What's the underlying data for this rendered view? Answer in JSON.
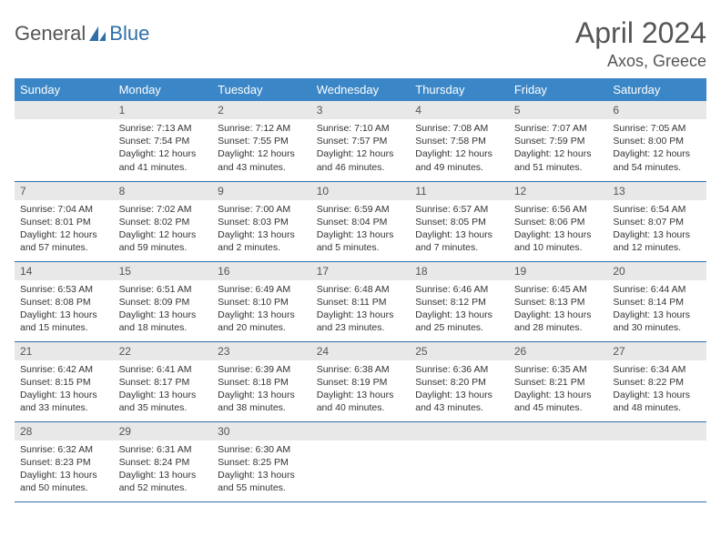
{
  "logo": {
    "part1": "General",
    "part2": "Blue"
  },
  "title": "April 2024",
  "location": "Axos, Greece",
  "colors": {
    "header_bg": "#3b86c6",
    "header_fg": "#ffffff",
    "daynum_bg": "#e8e8e8",
    "rule": "#2f6fa7",
    "text": "#333333",
    "title": "#555555",
    "logo_blue": "#2f6fa7",
    "logo_gray": "#555555"
  },
  "weekdays": [
    "Sunday",
    "Monday",
    "Tuesday",
    "Wednesday",
    "Thursday",
    "Friday",
    "Saturday"
  ],
  "weeks": [
    [
      null,
      {
        "n": "1",
        "sr": "7:13 AM",
        "ss": "7:54 PM",
        "dl": "12 hours and 41 minutes."
      },
      {
        "n": "2",
        "sr": "7:12 AM",
        "ss": "7:55 PM",
        "dl": "12 hours and 43 minutes."
      },
      {
        "n": "3",
        "sr": "7:10 AM",
        "ss": "7:57 PM",
        "dl": "12 hours and 46 minutes."
      },
      {
        "n": "4",
        "sr": "7:08 AM",
        "ss": "7:58 PM",
        "dl": "12 hours and 49 minutes."
      },
      {
        "n": "5",
        "sr": "7:07 AM",
        "ss": "7:59 PM",
        "dl": "12 hours and 51 minutes."
      },
      {
        "n": "6",
        "sr": "7:05 AM",
        "ss": "8:00 PM",
        "dl": "12 hours and 54 minutes."
      }
    ],
    [
      {
        "n": "7",
        "sr": "7:04 AM",
        "ss": "8:01 PM",
        "dl": "12 hours and 57 minutes."
      },
      {
        "n": "8",
        "sr": "7:02 AM",
        "ss": "8:02 PM",
        "dl": "12 hours and 59 minutes."
      },
      {
        "n": "9",
        "sr": "7:00 AM",
        "ss": "8:03 PM",
        "dl": "13 hours and 2 minutes."
      },
      {
        "n": "10",
        "sr": "6:59 AM",
        "ss": "8:04 PM",
        "dl": "13 hours and 5 minutes."
      },
      {
        "n": "11",
        "sr": "6:57 AM",
        "ss": "8:05 PM",
        "dl": "13 hours and 7 minutes."
      },
      {
        "n": "12",
        "sr": "6:56 AM",
        "ss": "8:06 PM",
        "dl": "13 hours and 10 minutes."
      },
      {
        "n": "13",
        "sr": "6:54 AM",
        "ss": "8:07 PM",
        "dl": "13 hours and 12 minutes."
      }
    ],
    [
      {
        "n": "14",
        "sr": "6:53 AM",
        "ss": "8:08 PM",
        "dl": "13 hours and 15 minutes."
      },
      {
        "n": "15",
        "sr": "6:51 AM",
        "ss": "8:09 PM",
        "dl": "13 hours and 18 minutes."
      },
      {
        "n": "16",
        "sr": "6:49 AM",
        "ss": "8:10 PM",
        "dl": "13 hours and 20 minutes."
      },
      {
        "n": "17",
        "sr": "6:48 AM",
        "ss": "8:11 PM",
        "dl": "13 hours and 23 minutes."
      },
      {
        "n": "18",
        "sr": "6:46 AM",
        "ss": "8:12 PM",
        "dl": "13 hours and 25 minutes."
      },
      {
        "n": "19",
        "sr": "6:45 AM",
        "ss": "8:13 PM",
        "dl": "13 hours and 28 minutes."
      },
      {
        "n": "20",
        "sr": "6:44 AM",
        "ss": "8:14 PM",
        "dl": "13 hours and 30 minutes."
      }
    ],
    [
      {
        "n": "21",
        "sr": "6:42 AM",
        "ss": "8:15 PM",
        "dl": "13 hours and 33 minutes."
      },
      {
        "n": "22",
        "sr": "6:41 AM",
        "ss": "8:17 PM",
        "dl": "13 hours and 35 minutes."
      },
      {
        "n": "23",
        "sr": "6:39 AM",
        "ss": "8:18 PM",
        "dl": "13 hours and 38 minutes."
      },
      {
        "n": "24",
        "sr": "6:38 AM",
        "ss": "8:19 PM",
        "dl": "13 hours and 40 minutes."
      },
      {
        "n": "25",
        "sr": "6:36 AM",
        "ss": "8:20 PM",
        "dl": "13 hours and 43 minutes."
      },
      {
        "n": "26",
        "sr": "6:35 AM",
        "ss": "8:21 PM",
        "dl": "13 hours and 45 minutes."
      },
      {
        "n": "27",
        "sr": "6:34 AM",
        "ss": "8:22 PM",
        "dl": "13 hours and 48 minutes."
      }
    ],
    [
      {
        "n": "28",
        "sr": "6:32 AM",
        "ss": "8:23 PM",
        "dl": "13 hours and 50 minutes."
      },
      {
        "n": "29",
        "sr": "6:31 AM",
        "ss": "8:24 PM",
        "dl": "13 hours and 52 minutes."
      },
      {
        "n": "30",
        "sr": "6:30 AM",
        "ss": "8:25 PM",
        "dl": "13 hours and 55 minutes."
      },
      null,
      null,
      null,
      null
    ]
  ],
  "labels": {
    "sunrise": "Sunrise:",
    "sunset": "Sunset:",
    "daylight": "Daylight:"
  }
}
